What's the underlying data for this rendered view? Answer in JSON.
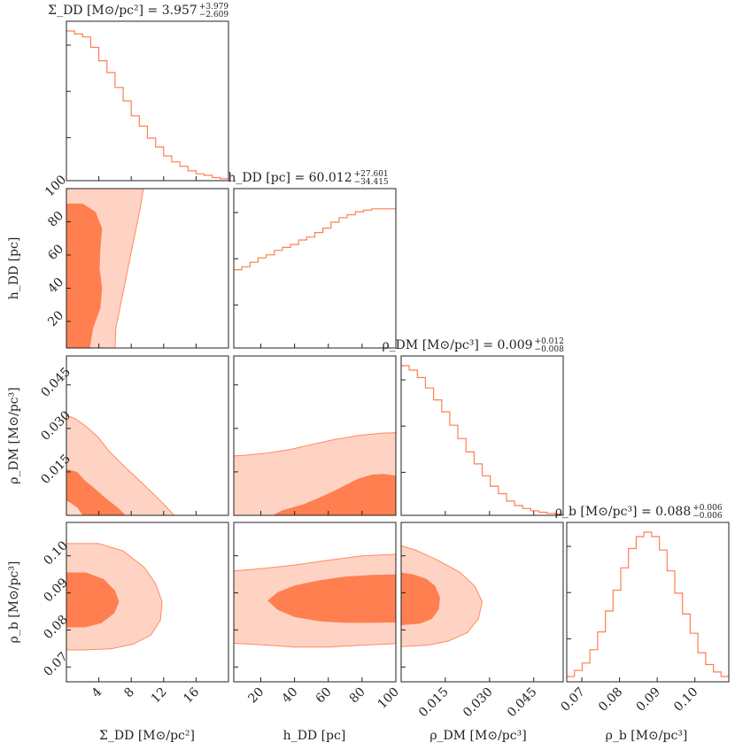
{
  "chart_data": {
    "type": "corner",
    "colors": {
      "line": "#ff7f50",
      "contour_outer": "#ffd3c4",
      "contour_inner": "#ff7f50"
    },
    "parameters": [
      {
        "key": "sigma",
        "title_name": "Σ_DD",
        "title_unit": "[M⊙/pc²]",
        "median": "3.957",
        "plus": "+3.979",
        "minus": "−2.609",
        "xlabel": "Σ_DD [M⊙/pc²]",
        "range": [
          0,
          20
        ],
        "ticks": [
          4,
          8,
          12,
          16
        ],
        "tick_labels": [
          "4",
          "8",
          "12",
          "16"
        ]
      },
      {
        "key": "h",
        "title_name": "h_DD",
        "title_unit": "[pc]",
        "median": "60.012",
        "plus": "+27.601",
        "minus": "−34.415",
        "xlabel": "h_DD [pc]",
        "ylabel": "h_DD [pc]",
        "range": [
          4,
          100
        ],
        "ticks": [
          20,
          40,
          60,
          80,
          100
        ],
        "tick_labels": [
          "20",
          "40",
          "60",
          "80",
          "100"
        ]
      },
      {
        "key": "rhodm",
        "title_name": "ρ_DM",
        "title_unit": "[M⊙/pc³]",
        "median": "0.009",
        "plus": "+0.012",
        "minus": "−0.008",
        "xlabel": "ρ_DM [M⊙/pc³]",
        "ylabel": "ρ_DM [M⊙/pc³]",
        "range": [
          0,
          0.055
        ],
        "ticks": [
          0.015,
          0.03,
          0.045
        ],
        "tick_labels": [
          "0.015",
          "0.030",
          "0.045"
        ]
      },
      {
        "key": "rhob",
        "title_name": "ρ_b",
        "title_unit": "[M⊙/pc³]",
        "median": "0.088",
        "plus": "+0.006",
        "minus": "−0.006",
        "xlabel": "ρ_b [M⊙/pc³]",
        "ylabel": "ρ_b [M⊙/pc³]",
        "range": [
          0.066,
          0.109
        ],
        "ticks": [
          0.07,
          0.08,
          0.09,
          0.1
        ],
        "tick_labels": [
          "0.07",
          "0.08",
          "0.09",
          "0.10"
        ]
      }
    ],
    "histograms": [
      {
        "param": "sigma",
        "counts": [
          1.0,
          0.98,
          0.96,
          0.89,
          0.8,
          0.72,
          0.62,
          0.53,
          0.43,
          0.36,
          0.28,
          0.22,
          0.16,
          0.12,
          0.09,
          0.06,
          0.04,
          0.03,
          0.015,
          0.007
        ]
      },
      {
        "param": "h",
        "counts": [
          0.52,
          0.54,
          0.57,
          0.6,
          0.62,
          0.65,
          0.67,
          0.69,
          0.72,
          0.74,
          0.77,
          0.8,
          0.84,
          0.87,
          0.89,
          0.91,
          0.92,
          0.93,
          0.93,
          0.93
        ]
      },
      {
        "param": "rhodm",
        "counts": [
          1.0,
          0.97,
          0.92,
          0.85,
          0.77,
          0.69,
          0.6,
          0.51,
          0.42,
          0.34,
          0.26,
          0.19,
          0.14,
          0.09,
          0.06,
          0.04,
          0.025,
          0.015,
          0.007,
          0.003
        ]
      },
      {
        "param": "rhob",
        "counts": [
          0.03,
          0.07,
          0.12,
          0.21,
          0.33,
          0.47,
          0.61,
          0.76,
          0.89,
          0.97,
          1.0,
          0.97,
          0.88,
          0.74,
          0.59,
          0.45,
          0.32,
          0.19,
          0.11,
          0.06,
          0.03
        ]
      }
    ],
    "contours": [
      {
        "x": "sigma",
        "y": "h",
        "outer": [
          [
            0,
            4
          ],
          [
            6.0,
            4
          ],
          [
            6.1,
            16
          ],
          [
            6.6,
            28
          ],
          [
            7.1,
            40
          ],
          [
            7.6,
            52
          ],
          [
            8.1,
            64
          ],
          [
            8.6,
            76
          ],
          [
            9.1,
            88
          ],
          [
            9.5,
            100
          ],
          [
            0,
            100
          ]
        ],
        "inner": [
          [
            0,
            4
          ],
          [
            2.9,
            4
          ],
          [
            3.3,
            16
          ],
          [
            4.2,
            28
          ],
          [
            4.4,
            40
          ],
          [
            4.1,
            52
          ],
          [
            4.2,
            64
          ],
          [
            4.4,
            76
          ],
          [
            3.6,
            86
          ],
          [
            2.0,
            91
          ],
          [
            0,
            91
          ]
        ]
      },
      {
        "x": "sigma",
        "y": "rhodm",
        "outer": [
          [
            0,
            0
          ],
          [
            13.3,
            0
          ],
          [
            11.8,
            0.0045
          ],
          [
            9.4,
            0.011
          ],
          [
            7.1,
            0.017
          ],
          [
            5.3,
            0.022
          ],
          [
            3.9,
            0.027
          ],
          [
            2.3,
            0.031
          ],
          [
            1.0,
            0.0335
          ],
          [
            0,
            0.0345
          ]
        ],
        "inner": [
          [
            0,
            0
          ],
          [
            7.3,
            0
          ],
          [
            6.4,
            0.0025
          ],
          [
            4.6,
            0.0065
          ],
          [
            3.4,
            0.0095
          ],
          [
            2.3,
            0.012
          ],
          [
            1.3,
            0.015
          ],
          [
            0,
            0.016
          ]
        ],
        "core": [
          [
            0,
            0
          ],
          [
            2.0,
            0
          ],
          [
            1.4,
            0.0025
          ],
          [
            0.4,
            0.0045
          ],
          [
            0,
            0.005
          ]
        ]
      },
      {
        "x": "h",
        "y": "rhodm",
        "outer": [
          [
            4,
            0
          ],
          [
            100,
            0
          ],
          [
            100,
            0.0285
          ],
          [
            92,
            0.0284
          ],
          [
            78,
            0.0276
          ],
          [
            64,
            0.0262
          ],
          [
            50,
            0.0244
          ],
          [
            38,
            0.0228
          ],
          [
            24,
            0.0215
          ],
          [
            10,
            0.0207
          ],
          [
            4,
            0.0205
          ]
        ],
        "inner": [
          [
            27,
            0
          ],
          [
            100,
            0
          ],
          [
            100,
            0.0137
          ],
          [
            93,
            0.0143
          ],
          [
            86,
            0.0141
          ],
          [
            78,
            0.0127
          ],
          [
            71,
            0.0107
          ],
          [
            64,
            0.0086
          ],
          [
            55,
            0.0062
          ],
          [
            45,
            0.0038
          ],
          [
            33,
            0.0018
          ]
        ]
      },
      {
        "x": "sigma",
        "y": "rhob",
        "outer": [
          [
            0,
            0.1033
          ],
          [
            4,
            0.1033
          ],
          [
            7,
            0.1013
          ],
          [
            9.6,
            0.0969
          ],
          [
            11.0,
            0.0925
          ],
          [
            11.8,
            0.0876
          ],
          [
            11.6,
            0.0826
          ],
          [
            10.4,
            0.0786
          ],
          [
            8.3,
            0.0762
          ],
          [
            5.5,
            0.0749
          ],
          [
            2,
            0.0746
          ],
          [
            0,
            0.0746
          ]
        ],
        "inner": [
          [
            0,
            0.0955
          ],
          [
            2.4,
            0.0955
          ],
          [
            4.6,
            0.0937
          ],
          [
            6.0,
            0.0906
          ],
          [
            6.5,
            0.0876
          ],
          [
            5.9,
            0.0845
          ],
          [
            4.3,
            0.0818
          ],
          [
            2.3,
            0.0807
          ],
          [
            0,
            0.0807
          ]
        ]
      },
      {
        "x": "h",
        "y": "rhob",
        "outer": [
          [
            4,
            0.0959
          ],
          [
            20,
            0.0965
          ],
          [
            40,
            0.0975
          ],
          [
            60,
            0.0988
          ],
          [
            80,
            0.1
          ],
          [
            100,
            0.1004
          ],
          [
            100,
            0.0763
          ],
          [
            80,
            0.0759
          ],
          [
            60,
            0.0754
          ],
          [
            40,
            0.0754
          ],
          [
            20,
            0.076
          ],
          [
            4,
            0.0764
          ]
        ],
        "inner": [
          [
            24,
            0.0879
          ],
          [
            30,
            0.0902
          ],
          [
            40,
            0.092
          ],
          [
            55,
            0.0934
          ],
          [
            70,
            0.0944
          ],
          [
            85,
            0.0948
          ],
          [
            100,
            0.095
          ],
          [
            100,
            0.082
          ],
          [
            85,
            0.0819
          ],
          [
            70,
            0.0819
          ],
          [
            55,
            0.0823
          ],
          [
            40,
            0.0835
          ],
          [
            30,
            0.0854
          ]
        ]
      },
      {
        "x": "rhodm",
        "y": "rhob",
        "outer": [
          [
            0,
            0.1027
          ],
          [
            0.005,
            0.1015
          ],
          [
            0.012,
            0.099
          ],
          [
            0.02,
            0.0955
          ],
          [
            0.025,
            0.0918
          ],
          [
            0.0275,
            0.0876
          ],
          [
            0.0262,
            0.083
          ],
          [
            0.0225,
            0.0793
          ],
          [
            0.016,
            0.077
          ],
          [
            0.009,
            0.0759
          ],
          [
            0,
            0.0755
          ]
        ],
        "inner": [
          [
            0,
            0.0955
          ],
          [
            0.004,
            0.095
          ],
          [
            0.0085,
            0.0938
          ],
          [
            0.0115,
            0.0919
          ],
          [
            0.0132,
            0.0888
          ],
          [
            0.0128,
            0.0856
          ],
          [
            0.0105,
            0.083
          ],
          [
            0.0065,
            0.0817
          ],
          [
            0,
            0.0813
          ]
        ]
      }
    ]
  }
}
